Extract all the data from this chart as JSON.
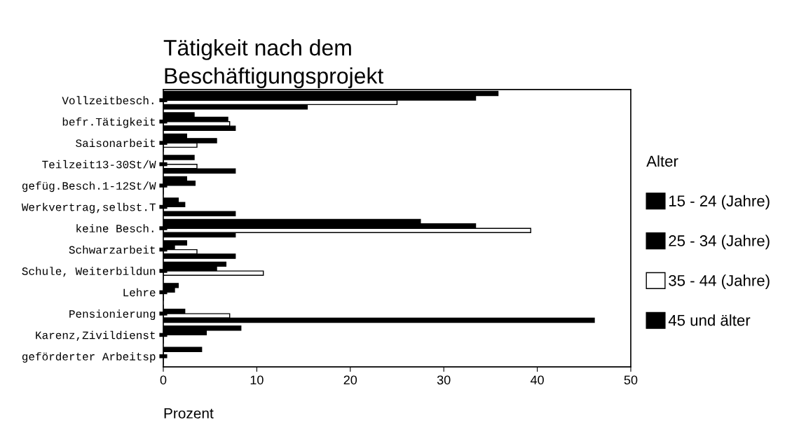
{
  "chart_data": {
    "type": "bar",
    "orientation": "horizontal",
    "title": "Tätigkeit nach dem\nBeschäftigungsprojekt",
    "xlabel": "Prozent",
    "legend_title": "Alter",
    "legend": "right",
    "grid": false,
    "categories": [
      "Vollzeitbesch.",
      "befr.Tätigkeit",
      "Saisonarbeit",
      "Teilzeit13-30St/W",
      "gefüg.Besch.1-12St/W",
      "Werkvertrag,selbst.T",
      "keine Besch.",
      "Schwarzarbeit",
      "Schule, Weiterbildun",
      "Lehre",
      "Pensionierung",
      "Karenz,Zivildienst",
      "geförderter Arbeitsp"
    ],
    "xlim": [
      0,
      50
    ],
    "xticks": [
      0,
      10,
      20,
      30,
      40,
      50
    ],
    "series": [
      {
        "name": "15 - 24 (Jahre)",
        "color": "#000000",
        "values": [
          35.8,
          3.3,
          2.5,
          3.3,
          2.5,
          1.6,
          27.5,
          2.5,
          6.7,
          1.6,
          0,
          8.3,
          4.1
        ]
      },
      {
        "name": "25 - 34 (Jahre)",
        "color": "#000000",
        "values": [
          33.4,
          6.9,
          5.7,
          0,
          3.4,
          2.3,
          33.4,
          1.2,
          5.7,
          1.2,
          2.3,
          4.6,
          0
        ]
      },
      {
        "name": "35 - 44 (Jahre)",
        "color": "#ffffff",
        "values": [
          25.0,
          7.1,
          3.6,
          3.6,
          0,
          0,
          39.3,
          3.6,
          10.7,
          0,
          7.1,
          0,
          0
        ]
      },
      {
        "name": "45 und älter",
        "color": "#000000",
        "values": [
          15.4,
          7.7,
          0,
          7.7,
          0,
          7.7,
          7.7,
          7.7,
          0,
          0,
          46.1,
          0,
          0
        ]
      }
    ]
  }
}
